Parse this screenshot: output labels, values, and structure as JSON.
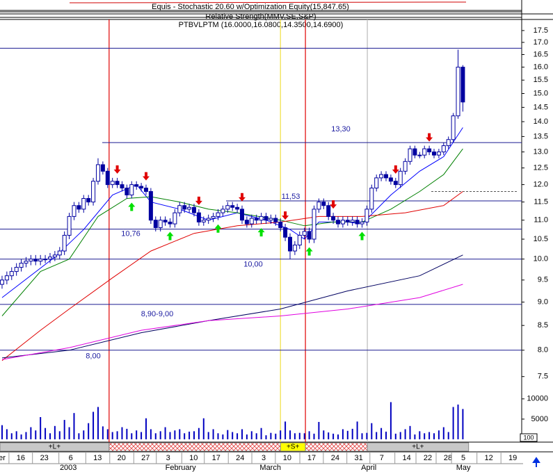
{
  "chart_data": {
    "type": "candlestick",
    "indicator_titles": [
      "Equis - Stochastic 20.60 w/Optimization Equity(15,847.65)",
      "Relative Strength(MMV,SE,S&P)",
      "PTBVLPTM (16.0000,16.0800,14.3500,14.6900)"
    ],
    "ylim": [
      7.27,
      17.92
    ],
    "log_scale": true,
    "yticks": [
      7.5,
      {
        "value": 8,
        "label": "8.0"
      },
      8.5,
      {
        "value": 9,
        "label": "9.0"
      },
      9.5,
      {
        "value": 10,
        "label": "10.0"
      },
      10.5,
      {
        "value": 11,
        "label": "11.0"
      },
      11.5,
      {
        "value": 12,
        "label": "12.0"
      },
      12.5,
      {
        "value": 13,
        "label": "13.0"
      },
      13.5,
      {
        "value": 14,
        "label": "14.0"
      },
      14.5,
      {
        "value": 15,
        "label": "15.0"
      },
      15.5,
      {
        "value": 16,
        "label": "16.0"
      },
      16.5,
      {
        "value": 17,
        "label": "17.0"
      },
      17.5
    ],
    "xlim": [
      -0.43,
      108.26
    ],
    "xticks": [
      {
        "value": 0,
        "label": "er"
      },
      {
        "value": 3.9,
        "label": "16"
      },
      {
        "value": 8.8,
        "label": "23"
      },
      {
        "value": 14.3,
        "label": "6"
      },
      {
        "value": 19.9,
        "label": "13"
      },
      {
        "value": 24.9,
        "label": "20"
      },
      {
        "value": 29.9,
        "label": "27"
      },
      {
        "value": 34.6,
        "label": "3"
      },
      {
        "value": 39.9,
        "label": "10"
      },
      {
        "value": 44.6,
        "label": "17"
      },
      {
        "value": 49.6,
        "label": "24"
      },
      {
        "value": 54.5,
        "label": "3"
      },
      {
        "value": 59.4,
        "label": "10"
      },
      {
        "value": 64.5,
        "label": "17"
      },
      {
        "value": 69.4,
        "label": "24"
      },
      {
        "value": 74.3,
        "label": "31"
      },
      {
        "value": 79.1,
        "label": "7"
      },
      {
        "value": 84.3,
        "label": "14"
      },
      {
        "value": 88.7,
        "label": "22"
      },
      {
        "value": 92.9,
        "label": "28"
      },
      {
        "value": 96.1,
        "label": "5"
      },
      {
        "value": 101.4,
        "label": "12"
      },
      {
        "value": 106.4,
        "label": "19"
      }
    ],
    "months": [
      {
        "value": 13.8,
        "label": "2003"
      },
      {
        "value": 37.2,
        "label": "February"
      },
      {
        "value": 55.9,
        "label": "March"
      },
      {
        "value": 76.4,
        "label": "April"
      },
      {
        "value": 96.1,
        "label": "May"
      }
    ],
    "candle_color": "#0000a0",
    "open": [
      9.4,
      9.5,
      9.6,
      9.7,
      9.8,
      9.9,
      9.95,
      10.0,
      9.95,
      10.0,
      10.0,
      10.05,
      10.1,
      10.2,
      10.6,
      11.1,
      11.4,
      11.3,
      11.6,
      11.5,
      12.1,
      12.6,
      12.4,
      12.0,
      12.1,
      12.0,
      11.9,
      11.7,
      12.0,
      11.95,
      11.9,
      11.8,
      11.0,
      10.8,
      11.0,
      10.95,
      10.9,
      11.2,
      11.4,
      11.3,
      11.35,
      11.2,
      10.95,
      11.0,
      11.05,
      11.1,
      11.2,
      11.3,
      11.4,
      11.35,
      11.3,
      11.0,
      10.9,
      11.05,
      11.0,
      11.1,
      11.0,
      11.05,
      10.95,
      10.8,
      10.55,
      10.2,
      10.35,
      10.6,
      10.7,
      10.5,
      11.3,
      11.5,
      11.4,
      11.1,
      11.0,
      10.9,
      11.0,
      10.95,
      11.0,
      10.9,
      10.95,
      11.3,
      11.9,
      12.2,
      12.3,
      12.2,
      12.1,
      12.0,
      12.4,
      12.7,
      13.1,
      12.9,
      12.9,
      13.1,
      13.0,
      12.9,
      13.0,
      13.2,
      13.4,
      14.2,
      16.0
    ],
    "high": [
      9.6,
      9.7,
      9.8,
      9.9,
      10.0,
      10.05,
      10.1,
      10.1,
      10.1,
      10.1,
      10.15,
      10.2,
      10.3,
      10.7,
      11.2,
      11.5,
      11.5,
      11.7,
      11.7,
      12.2,
      12.8,
      12.7,
      12.5,
      12.2,
      12.2,
      12.1,
      12.0,
      12.1,
      12.1,
      12.05,
      12.0,
      11.9,
      11.1,
      11.1,
      11.1,
      11.05,
      11.3,
      11.5,
      11.5,
      11.45,
      11.45,
      11.3,
      11.1,
      11.15,
      11.2,
      11.3,
      11.4,
      11.5,
      11.5,
      11.45,
      11.4,
      11.1,
      11.15,
      11.15,
      11.2,
      11.2,
      11.15,
      11.15,
      11.05,
      10.9,
      10.65,
      10.45,
      10.7,
      10.8,
      10.8,
      11.4,
      11.6,
      11.6,
      11.5,
      11.2,
      11.1,
      11.1,
      11.1,
      11.1,
      11.1,
      11.05,
      11.4,
      12.0,
      12.3,
      12.4,
      12.4,
      12.3,
      12.2,
      12.5,
      12.8,
      13.2,
      13.2,
      13.0,
      13.2,
      13.2,
      13.1,
      13.1,
      13.3,
      13.5,
      14.3,
      16.7,
      16.08
    ],
    "low": [
      9.3,
      9.4,
      9.5,
      9.6,
      9.7,
      9.8,
      9.85,
      9.85,
      9.85,
      9.9,
      9.9,
      9.95,
      10.0,
      10.1,
      10.5,
      11.0,
      11.2,
      11.2,
      11.4,
      11.4,
      12.0,
      12.3,
      11.9,
      11.9,
      11.9,
      11.8,
      11.6,
      11.6,
      11.85,
      11.8,
      11.7,
      10.9,
      10.7,
      10.7,
      10.85,
      10.8,
      10.8,
      11.1,
      11.2,
      11.2,
      11.1,
      10.85,
      10.85,
      10.9,
      10.95,
      11.0,
      11.1,
      11.2,
      11.25,
      11.2,
      10.9,
      10.8,
      10.8,
      10.9,
      10.9,
      10.9,
      10.9,
      10.85,
      10.7,
      10.45,
      10.0,
      10.1,
      10.25,
      10.5,
      10.4,
      10.4,
      11.2,
      11.3,
      11.0,
      10.9,
      10.8,
      10.8,
      10.85,
      10.85,
      10.8,
      10.8,
      10.85,
      11.2,
      11.8,
      12.1,
      12.1,
      12.0,
      11.9,
      11.9,
      12.3,
      12.6,
      12.8,
      12.8,
      12.8,
      12.9,
      12.8,
      12.8,
      12.9,
      13.1,
      13.3,
      14.1,
      14.35
    ],
    "close": [
      9.5,
      9.6,
      9.7,
      9.8,
      9.9,
      9.95,
      10.0,
      9.95,
      10.0,
      10.0,
      10.05,
      10.1,
      10.2,
      10.6,
      11.1,
      11.4,
      11.3,
      11.6,
      11.5,
      12.1,
      12.6,
      12.4,
      12.0,
      12.1,
      12.0,
      11.9,
      11.7,
      12.0,
      11.95,
      11.9,
      11.8,
      11.0,
      10.8,
      11.0,
      10.95,
      10.9,
      11.2,
      11.4,
      11.3,
      11.35,
      11.2,
      10.95,
      11.0,
      11.05,
      11.1,
      11.2,
      11.3,
      11.4,
      11.35,
      11.3,
      11.0,
      10.9,
      11.05,
      11.0,
      11.1,
      11.0,
      11.05,
      10.95,
      10.8,
      10.55,
      10.2,
      10.35,
      10.6,
      10.7,
      10.5,
      11.3,
      11.5,
      11.4,
      11.1,
      11.0,
      10.9,
      11.0,
      10.95,
      11.0,
      10.9,
      10.95,
      11.3,
      11.9,
      12.2,
      12.3,
      12.2,
      12.1,
      12.0,
      12.4,
      12.7,
      13.1,
      12.9,
      12.9,
      13.1,
      13.0,
      12.9,
      13.0,
      13.2,
      13.4,
      14.2,
      16.0,
      14.69
    ],
    "lines": [
      {
        "color": "#0000ff",
        "x": [
          0,
          11,
          17,
          23,
          28,
          31,
          37,
          43,
          49,
          55,
          60,
          63,
          66,
          72,
          75,
          81,
          87,
          92,
          96
        ],
        "values": [
          9.1,
          10.05,
          10.75,
          11.7,
          12.0,
          11.5,
          11.3,
          11.0,
          11.2,
          11.0,
          10.75,
          10.5,
          10.95,
          10.95,
          10.9,
          11.7,
          12.4,
          12.85,
          13.8
        ]
      },
      {
        "color": "#008000",
        "x": [
          0,
          8,
          14,
          20,
          26,
          31,
          37,
          43,
          49,
          58,
          63,
          69,
          75,
          81,
          87,
          92,
          96
        ],
        "values": [
          8.7,
          9.7,
          10.0,
          11.1,
          11.6,
          11.65,
          11.5,
          11.3,
          11.2,
          11.0,
          10.85,
          10.95,
          10.95,
          11.3,
          11.8,
          12.3,
          13.1
        ]
      },
      {
        "color": "#e00000",
        "x": [
          0,
          8,
          14,
          23,
          31,
          40,
          49,
          58,
          66,
          75,
          84,
          92,
          96
        ],
        "values": [
          7.8,
          8.4,
          8.85,
          9.55,
          10.2,
          10.65,
          10.85,
          10.95,
          11.1,
          11.1,
          11.2,
          11.4,
          11.8
        ]
      },
      {
        "color": "#000060",
        "x": [
          0,
          14,
          29,
          43,
          58,
          72,
          87,
          96
        ],
        "values": [
          7.85,
          8.0,
          8.35,
          8.6,
          8.85,
          9.25,
          9.6,
          10.1
        ]
      },
      {
        "color": "#e000e0",
        "x": [
          0,
          14,
          29,
          43,
          58,
          72,
          87,
          96
        ],
        "values": [
          7.82,
          8.05,
          8.4,
          8.6,
          8.7,
          8.85,
          9.1,
          9.4
        ]
      }
    ],
    "levels": [
      {
        "value": 16.76
      },
      {
        "value": 13.3,
        "label": "13,30"
      },
      {
        "value": 11.53,
        "label": "11,53"
      },
      {
        "value": 10.76,
        "label": "10,76"
      },
      {
        "value": 10.0,
        "label": "10,00"
      },
      {
        "value": 8.95,
        "label": "8,90-9,00"
      },
      {
        "value": 8.0,
        "label": "8,00"
      },
      {
        "value": 11.8
      }
    ],
    "vlines": [
      {
        "x": 22.3,
        "color": "#e00000"
      },
      {
        "x": 58,
        "color": "#f0e040"
      },
      {
        "x": 63.2,
        "color": "#e00000"
      },
      {
        "x": 76.1,
        "color": "#bbbbbb"
      }
    ],
    "sell_signals": [
      24,
      30,
      41,
      50,
      59,
      69,
      82,
      89
    ],
    "buy_signals": [
      27,
      35,
      45,
      54,
      64,
      75
    ],
    "volume": [
      3500,
      2500,
      1500,
      2000,
      1200,
      1800,
      3000,
      2200,
      5500,
      2800,
      1500,
      3300,
      2000,
      4800,
      3000,
      6500,
      1500,
      2200,
      4000,
      6800,
      8000,
      3200,
      2500,
      1800,
      2000,
      3000,
      2600,
      1500,
      2200,
      1800,
      5200,
      2500,
      1500,
      2000,
      3000,
      1800,
      2200,
      2500,
      1500,
      1900,
      2000,
      2800,
      5200,
      1800,
      2500,
      1500,
      1200,
      2300,
      1800,
      1500,
      2500,
      1200,
      2000,
      1500,
      2800,
      1000,
      1600,
      1400,
      2200,
      4400,
      2200,
      1500,
      1600,
      1500,
      2000,
      1400,
      4300,
      2200,
      1700,
      1400,
      1200,
      2500,
      2100,
      2600,
      4400,
      1500,
      1600,
      4000,
      1800,
      2800,
      1900,
      9200,
      1400,
      1800,
      2500,
      3300,
      1200,
      2000,
      1500,
      1800,
      1500,
      2200,
      3000,
      1800,
      8000,
      8600,
      7500
    ],
    "volume_ylim": [
      0,
      11000
    ],
    "volume_ticks": [
      5000,
      10000
    ],
    "volume_color": "#0000c0",
    "volume_scale_label": "100",
    "bands": [
      {
        "from": -0.43,
        "to": 22.3,
        "label": "+L+",
        "style": "long"
      },
      {
        "from": 22.3,
        "to": 58,
        "style": "hatch"
      },
      {
        "from": 58,
        "to": 63.2,
        "label": "+S+",
        "style": "short"
      },
      {
        "from": 63.2,
        "to": 76.1,
        "style": "hatch"
      },
      {
        "from": 76.1,
        "to": 97.2,
        "label": "+L+",
        "style": "long"
      }
    ]
  }
}
